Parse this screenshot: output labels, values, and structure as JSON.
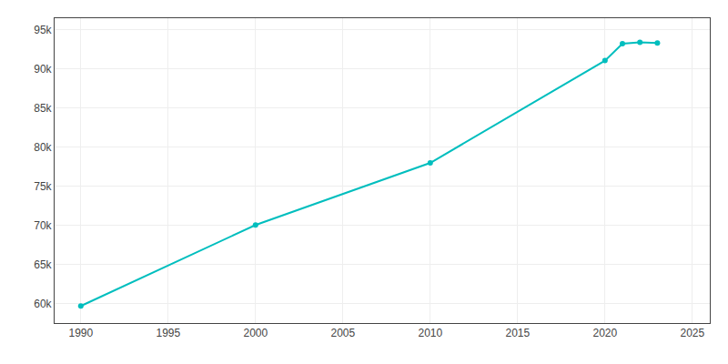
{
  "chart_data": {
    "type": "line",
    "x": [
      1990,
      2000,
      2010,
      2020,
      2021,
      2022,
      2023
    ],
    "values": [
      59682,
      70045,
      77983,
      91074,
      93233,
      93401,
      93338
    ],
    "color": "#00BEBE",
    "marker": "circle",
    "xlim": [
      1988.5,
      2026
    ],
    "ylim": [
      57500,
      96500
    ],
    "xticks": [
      1990,
      1995,
      2000,
      2005,
      2010,
      2015,
      2020,
      2025
    ],
    "yticks": [
      {
        "value": 60000,
        "label": "60k"
      },
      {
        "value": 65000,
        "label": "65k"
      },
      {
        "value": 70000,
        "label": "70k"
      },
      {
        "value": 75000,
        "label": "75k"
      },
      {
        "value": 80000,
        "label": "80k"
      },
      {
        "value": 85000,
        "label": "85k"
      },
      {
        "value": 90000,
        "label": "90k"
      },
      {
        "value": 95000,
        "label": "95k"
      }
    ],
    "grid": true
  }
}
